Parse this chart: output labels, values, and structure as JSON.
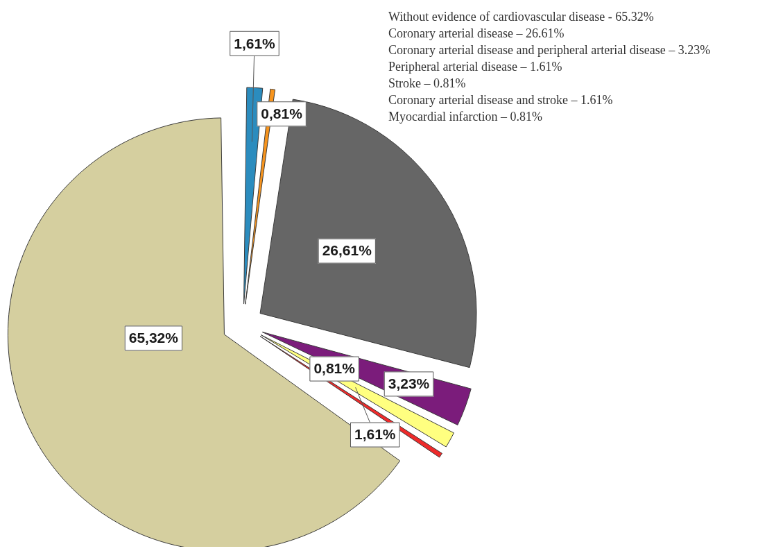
{
  "chart_data": {
    "type": "pie",
    "categories": [
      null,
      null,
      null,
      null,
      null,
      null,
      null
    ],
    "values": [
      1.61,
      0.81,
      26.61,
      3.23,
      1.61,
      0.81,
      65.32
    ],
    "colors": [
      "#2b8cbe",
      "#f7941d",
      "#666666",
      "#7b1c7b",
      "#ffff80",
      "#ee2a2a",
      "#d5cf9f"
    ],
    "value_labels": [
      "1,61%",
      "0,81%",
      "26,61%",
      "3,23%",
      "1,61%",
      "0,81%",
      "65,32%"
    ],
    "annotations": [
      "Without evidence of cardiovascular disease - 65.32%",
      "Coronary arterial disease – 26.61%",
      "Coronary arterial disease and peripheral arterial disease – 3.23%",
      "Peripheral arterial disease – 1.61%",
      "Stroke – 0.81%",
      "Coronary arterial disease and stroke – 1.61%",
      "Myocardial infarction – 0.81%"
    ]
  }
}
